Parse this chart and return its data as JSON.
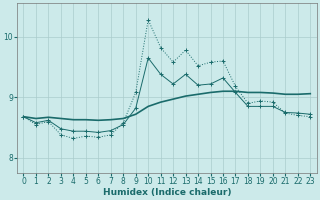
{
  "xlabel": "Humidex (Indice chaleur)",
  "background_color": "#cceaea",
  "grid_color": "#aacccc",
  "line_color": "#1a6b6b",
  "xlim": [
    -0.5,
    23.5
  ],
  "ylim": [
    7.75,
    10.55
  ],
  "yticks": [
    8,
    9,
    10
  ],
  "xticks": [
    0,
    1,
    2,
    3,
    4,
    5,
    6,
    7,
    8,
    9,
    10,
    11,
    12,
    13,
    14,
    15,
    16,
    17,
    18,
    19,
    20,
    21,
    22,
    23
  ],
  "smooth_x": [
    0,
    1,
    2,
    3,
    4,
    5,
    6,
    7,
    8,
    9,
    10,
    11,
    12,
    13,
    14,
    15,
    16,
    17,
    18,
    19,
    20,
    21,
    22,
    23
  ],
  "smooth_y": [
    8.68,
    8.65,
    8.67,
    8.65,
    8.63,
    8.63,
    8.62,
    8.63,
    8.65,
    8.72,
    8.85,
    8.92,
    8.97,
    9.02,
    9.05,
    9.08,
    9.1,
    9.1,
    9.08,
    9.08,
    9.07,
    9.05,
    9.05,
    9.06
  ],
  "mid_x": [
    0,
    1,
    2,
    3,
    4,
    5,
    6,
    7,
    8,
    9,
    10,
    11,
    12,
    13,
    14,
    15,
    16,
    17,
    18,
    19,
    20,
    21,
    22,
    23
  ],
  "mid_y": [
    8.68,
    8.58,
    8.62,
    8.48,
    8.44,
    8.44,
    8.42,
    8.45,
    8.55,
    8.82,
    9.65,
    9.38,
    9.22,
    9.38,
    9.2,
    9.22,
    9.32,
    9.08,
    8.85,
    8.85,
    8.85,
    8.75,
    8.74,
    8.72
  ],
  "top_x": [
    0,
    1,
    2,
    3,
    4,
    5,
    6,
    7,
    8,
    9,
    10,
    11,
    12,
    13,
    14,
    15,
    16,
    17,
    18,
    19,
    20,
    21,
    22,
    23
  ],
  "top_y": [
    8.68,
    8.55,
    8.6,
    8.38,
    8.32,
    8.36,
    8.34,
    8.38,
    8.58,
    9.08,
    10.28,
    9.82,
    9.58,
    9.78,
    9.52,
    9.58,
    9.6,
    9.18,
    8.9,
    8.94,
    8.92,
    8.74,
    8.7,
    8.68
  ]
}
